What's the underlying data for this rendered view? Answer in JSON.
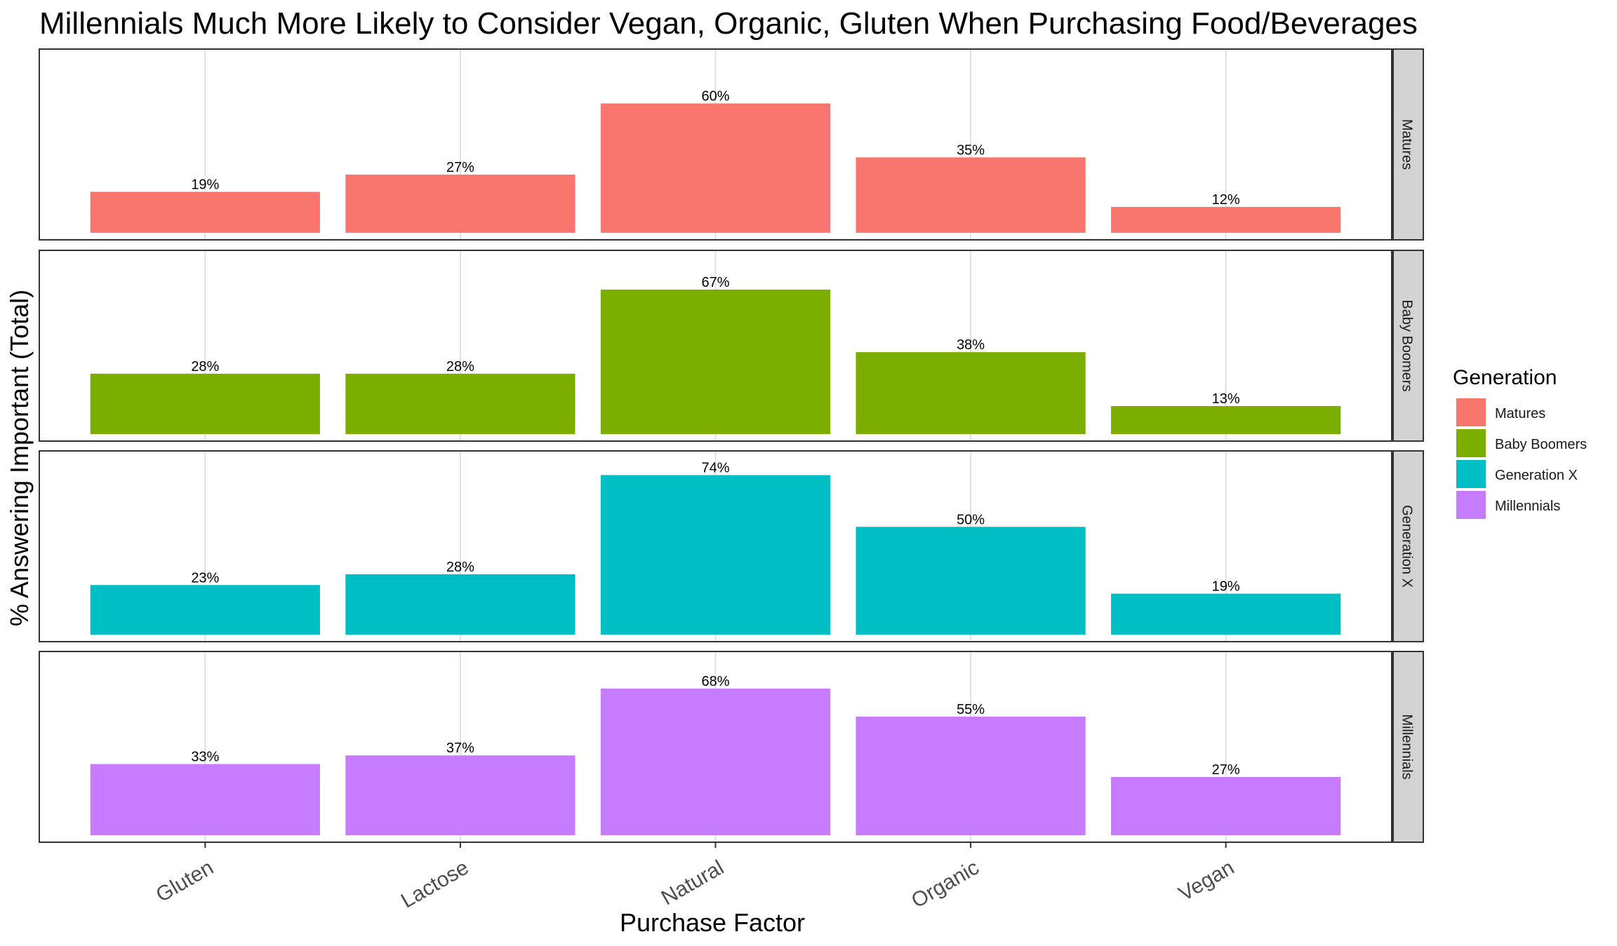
{
  "chart_data": {
    "type": "bar",
    "title": "Millennials Much More Likely to Consider Vegan, Organic, Gluten When Purchasing Food/Beverages",
    "xlabel": "Purchase Factor",
    "ylabel": "% Answering Important (Total)",
    "categories": [
      "Gluten",
      "Lactose",
      "Natural",
      "Organic",
      "Vegan"
    ],
    "ylim": [
      0,
      80
    ],
    "grid": "vertical major gridlines at categories",
    "legend": {
      "title": "Generation",
      "position": "right"
    },
    "facet_layout": "rows",
    "series": [
      {
        "name": "Matures",
        "color": "#F8766D",
        "values": [
          19,
          27,
          60,
          35,
          12
        ],
        "labels": [
          "19%",
          "27%",
          "60%",
          "35%",
          "12%"
        ]
      },
      {
        "name": "Baby Boomers",
        "color": "#7CAE00",
        "values": [
          28,
          28,
          67,
          38,
          13
        ],
        "labels": [
          "28%",
          "28%",
          "67%",
          "38%",
          "13%"
        ]
      },
      {
        "name": "Generation X",
        "color": "#00BFC4",
        "values": [
          23,
          28,
          74,
          50,
          19
        ],
        "labels": [
          "23%",
          "28%",
          "74%",
          "50%",
          "19%"
        ]
      },
      {
        "name": "Millennials",
        "color": "#C77CFF",
        "values": [
          33,
          37,
          68,
          55,
          27
        ],
        "labels": [
          "33%",
          "37%",
          "68%",
          "55%",
          "27%"
        ]
      }
    ]
  },
  "colors": {
    "title": "#1C5B82",
    "panel_border": "#333333",
    "strip_fill": "#D3D3D3",
    "grid": "#E0E0E0"
  }
}
